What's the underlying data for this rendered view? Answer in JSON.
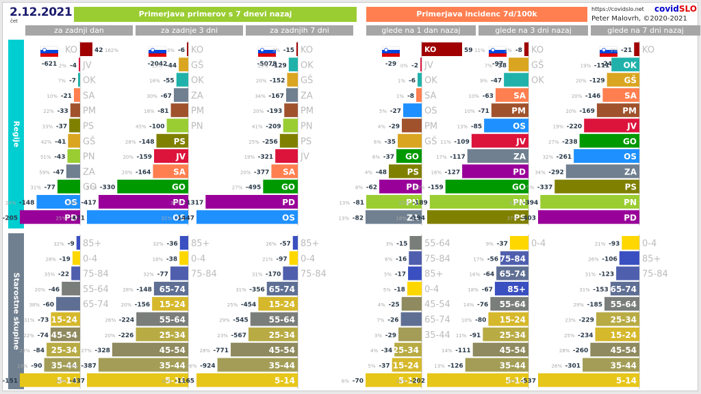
{
  "header": {
    "date": "2.12.2021",
    "weekday": "čet",
    "left_title": "Primerjava primerov s 7 dnevi nazaj",
    "right_title": "Primerjava incidenc 7d/100k",
    "url": "https://covidslo.net",
    "brand_a": "covid",
    "brand_b": "SLO",
    "author": "Peter Malovrh, ©2020-2021",
    "columns": [
      "za zadnji dan",
      "za zadnje 3 dni",
      "za zadnjih 7 dni",
      "glede na 1 dan nazaj",
      "glede na 3 dni nazaj",
      "glede na 7 dni nazaj"
    ]
  },
  "sections": {
    "regions": "Regije",
    "ages": "Starostne skupine"
  },
  "colors": {
    "left_header": "#9acd32",
    "right_header": "#ff7f50",
    "regions_band": "#00ced1",
    "ages_band": "#708090",
    "KO": "#a00000",
    "JV": "#dc143c",
    "OK": "#20b2aa",
    "SA": "#ff7f50",
    "PM": "#a0522d",
    "PS": "#808000",
    "GŠ": "#daa520",
    "PN": "#9acd32",
    "ZA": "#708090",
    "GO": "#009900",
    "OS": "#1e90ff",
    "PD": "#990099",
    "85+": "#3a4fc0",
    "0-4": "#ffd700",
    "75-84": "#4f5fae",
    "55-64": "#7a7e7a",
    "65-74": "#5f6f94",
    "15-24": "#d6b82c",
    "45-54": "#8f8a5f",
    "25-34": "#b8ab44",
    "35-44": "#a39d57",
    "5-14": "#e6c619"
  },
  "chart_data": [
    {
      "type": "bar",
      "orientation": "horizontal",
      "panel": "za zadnji dan",
      "group": "Regije",
      "total": "-621",
      "categories": [
        "KO",
        "JV",
        "OK",
        "SA",
        "PM",
        "PS",
        "GŠ",
        "PN",
        "ZA",
        "GO",
        "OS",
        "PD"
      ],
      "values": [
        42,
        -4,
        -7,
        -21,
        -33,
        -37,
        -41,
        -43,
        -47,
        -77,
        -148,
        -205
      ],
      "pct": [
        "162%",
        "2%",
        "7%",
        "10%",
        "22%",
        "33%",
        "42%",
        "51%",
        "59%",
        "31%",
        "28%",
        "44%"
      ]
    },
    {
      "type": "bar",
      "orientation": "horizontal",
      "panel": "za zadnje 3 dni",
      "group": "Regije",
      "total": "-2042",
      "categories": [
        "KO",
        "GŠ",
        "OK",
        "ZA",
        "PM",
        "PN",
        "PS",
        "JV",
        "SA",
        "GO",
        "PD",
        "OS"
      ],
      "values": [
        -6,
        -44,
        -55,
        -67,
        -81,
        -100,
        -148,
        -159,
        -164,
        -330,
        -417,
        -471
      ],
      "pct": [
        "3%",
        "13%",
        "16%",
        "30%",
        "18%",
        "45%",
        "28%",
        "20%",
        "20%",
        "37%",
        "29%",
        "25%"
      ]
    },
    {
      "type": "bar",
      "orientation": "horizontal",
      "panel": "za zadnjih 7 dni",
      "group": "Regije",
      "total": "-5078",
      "categories": [
        "KO",
        "OK",
        "GŠ",
        "ZA",
        "PM",
        "PN",
        "PS",
        "JV",
        "SA",
        "GO",
        "PD",
        "OS"
      ],
      "values": [
        -15,
        -129,
        -152,
        -167,
        -193,
        -209,
        -256,
        -321,
        -377,
        -495,
        -1317,
        -1447
      ],
      "pct": [
        "3%",
        "19%",
        "20%",
        "34%",
        "20%",
        "41%",
        "25%",
        "19%",
        "20%",
        "27%",
        "37%",
        "31%"
      ]
    },
    {
      "type": "bar",
      "orientation": "horizontal",
      "panel": "glede na 1 dan nazaj",
      "group": "Regije",
      "total": "-29",
      "categories": [
        "KO",
        "JV",
        "OK",
        "SA",
        "OS",
        "PM",
        "GŠ",
        "GO",
        "PS",
        "PD",
        "PN",
        "ZA"
      ],
      "values": [
        59,
        -2,
        -6,
        -8,
        -27,
        -29,
        -35,
        -37,
        -48,
        -62,
        -81,
        -82
      ],
      "pct": [
        "11%",
        "0%",
        "1%",
        "1%",
        "5%",
        "4%",
        "6%",
        "6%",
        "4%",
        "8%",
        "13%",
        "13%"
      ]
    },
    {
      "type": "bar",
      "orientation": "horizontal",
      "panel": "glede na 3 dni nazaj",
      "group": "Regije",
      "total": "-97",
      "categories": [
        "KO",
        "GŠ",
        "OK",
        "SA",
        "PM",
        "OS",
        "JV",
        "ZA",
        "PD",
        "GO",
        "PN",
        "PS"
      ],
      "values": [
        -8,
        -38,
        -47,
        -63,
        -71,
        -85,
        -109,
        -117,
        -127,
        -159,
        -189,
        -194
      ],
      "pct": [
        "1%",
        "7%",
        "9%",
        "10%",
        "10%",
        "13%",
        "11%",
        "17%",
        "16%",
        "20%",
        "25%",
        "16%"
      ]
    },
    {
      "type": "bar",
      "orientation": "horizontal",
      "panel": "glede na 7 dni nazaj",
      "group": "Regije",
      "total": "-241",
      "categories": [
        "KO",
        "OK",
        "GŠ",
        "SA",
        "PM",
        "JV",
        "GO",
        "OS",
        "ZA",
        "PS",
        "PN",
        "PD"
      ],
      "values": [
        -21,
        -111,
        -129,
        -146,
        -169,
        -220,
        -238,
        -261,
        -292,
        -337,
        -394,
        -403
      ],
      "pct": [
        "3%",
        "19%",
        "20%",
        "20%",
        "20%",
        "19%",
        "27%",
        "32%",
        "34%",
        "25%",
        "41%",
        "37%"
      ]
    },
    {
      "type": "bar",
      "orientation": "horizontal",
      "panel": "za zadnji dan",
      "group": "Starostne skupine",
      "categories": [
        "85+",
        "0-4",
        "75-84",
        "55-64",
        "65-74",
        "15-24",
        "45-54",
        "25-34",
        "35-44",
        "5-14"
      ],
      "values": [
        -9,
        -19,
        -22,
        -46,
        -60,
        -73,
        -74,
        -84,
        -90,
        -151
      ],
      "pct": [
        "32%",
        "28%",
        "35%",
        "20%",
        "38%",
        "31%",
        "22%",
        "23%",
        "19%",
        "36%"
      ]
    },
    {
      "type": "bar",
      "orientation": "horizontal",
      "panel": "za zadnje 3 dni",
      "group": "Starostne skupine",
      "categories": [
        "85+",
        "0-4",
        "75-84",
        "65-74",
        "15-24",
        "55-64",
        "25-34",
        "45-54",
        "35-44",
        "5-14"
      ],
      "values": [
        -36,
        -38,
        -77,
        -148,
        -156,
        -224,
        -226,
        -328,
        -387,
        -437
      ],
      "pct": [
        "32%",
        "18%",
        "32%",
        "28%",
        "20%",
        "26%",
        "20%",
        "27%",
        "24%",
        "29%"
      ]
    },
    {
      "type": "bar",
      "orientation": "horizontal",
      "panel": "za zadnjih 7 dni",
      "group": "Starostne skupine",
      "categories": [
        "85+",
        "0-4",
        "75-84",
        "65-74",
        "15-24",
        "55-64",
        "25-34",
        "45-54",
        "35-44",
        "5-14"
      ],
      "values": [
        -57,
        -97,
        -170,
        -356,
        -454,
        -545,
        -567,
        -771,
        -924,
        -1165
      ],
      "pct": [
        "26%",
        "21%",
        "31%",
        "31%",
        "25%",
        "29%",
        "23%",
        "28%",
        "26%",
        "32%"
      ]
    },
    {
      "type": "bar",
      "orientation": "horizontal",
      "panel": "glede na 1 dan nazaj",
      "group": "Starostne skupine",
      "categories": [
        "55-64",
        "75-84",
        "85+",
        "0-4",
        "45-54",
        "65-74",
        "35-44",
        "25-34",
        "15-24",
        "5-14"
      ],
      "values": [
        -15,
        -16,
        -17,
        -18,
        -25,
        -26,
        -29,
        -34,
        -37,
        -70
      ],
      "pct": [
        "3%",
        "6%",
        "5%",
        "5%",
        "4%",
        "7%",
        "3%",
        "4%",
        "5%",
        "6%"
      ]
    },
    {
      "type": "bar",
      "orientation": "horizontal",
      "panel": "glede na 3 dni nazaj",
      "group": "Starostne skupine",
      "categories": [
        "0-4",
        "75-84",
        "65-74",
        "85+",
        "55-64",
        "15-24",
        "25-34",
        "45-54",
        "35-44",
        "5-14"
      ],
      "values": [
        -37,
        -56,
        -64,
        -67,
        -76,
        -80,
        -91,
        -111,
        -126,
        -202
      ],
      "pct": [
        "9%",
        "17%",
        "16%",
        "18%",
        "14%",
        "10%",
        "11%",
        "14%",
        "13%",
        "15%"
      ]
    },
    {
      "type": "bar",
      "orientation": "horizontal",
      "panel": "glede na 7 dni nazaj",
      "group": "Starostne skupine",
      "categories": [
        "0-4",
        "85+",
        "75-84",
        "65-74",
        "55-64",
        "25-34",
        "15-24",
        "45-54",
        "35-44",
        "5-14"
      ],
      "values": [
        -93,
        -106,
        -123,
        -153,
        -185,
        -229,
        -234,
        -260,
        -301,
        -537
      ],
      "pct": [
        "21%",
        "26%",
        "31%",
        "31%",
        "29%",
        "23%",
        "25%",
        "28%",
        "26%",
        "32%"
      ]
    }
  ]
}
